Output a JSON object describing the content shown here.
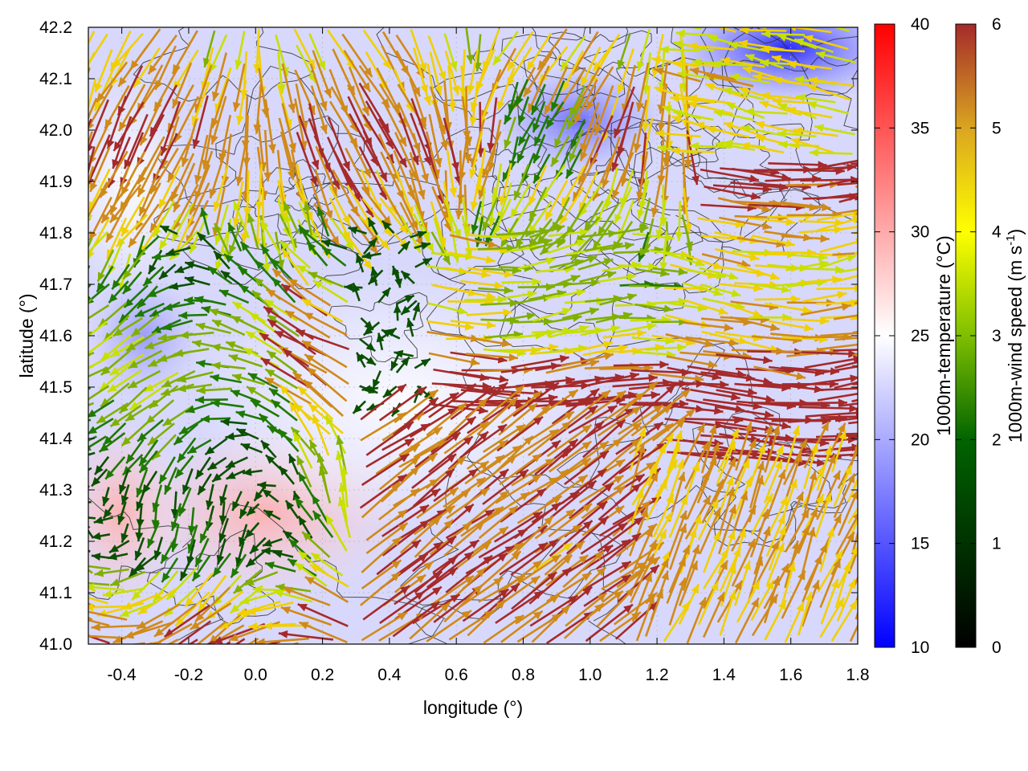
{
  "chart_data": {
    "type": "vector-field",
    "xlabel": "longitude (°)",
    "ylabel": "latitude (°)",
    "xlim": [
      -0.5,
      1.8
    ],
    "ylim": [
      41.0,
      42.2
    ],
    "x_ticks": [
      "-0.4",
      "-0.2",
      "0.0",
      "0.2",
      "0.4",
      "0.6",
      "0.8",
      "1.0",
      "1.2",
      "1.4",
      "1.6",
      "1.8"
    ],
    "y_ticks": [
      "41.0",
      "41.1",
      "41.2",
      "41.3",
      "41.4",
      "41.5",
      "41.6",
      "41.7",
      "41.8",
      "41.9",
      "42.0",
      "42.1",
      "42.2"
    ],
    "grid": true,
    "background_field": {
      "label": "1000m-temperature (°C)",
      "range": [
        10,
        40
      ],
      "ticks": [
        "10",
        "15",
        "20",
        "25",
        "30",
        "35",
        "40"
      ],
      "colormap": [
        "#0000ff",
        "#ffffff",
        "#ff0000"
      ]
    },
    "vector_field": {
      "label_text": "1000m-wind speed (m s",
      "label_sup": "-1",
      "label_close": ")",
      "range": [
        0,
        6
      ],
      "ticks": [
        "0",
        "1",
        "2",
        "3",
        "4",
        "5",
        "6"
      ],
      "colormap": [
        "#000000",
        "#006400",
        "#7fbf00",
        "#ffff00",
        "#daa520",
        "#b22222"
      ]
    },
    "contour_lines": true
  }
}
